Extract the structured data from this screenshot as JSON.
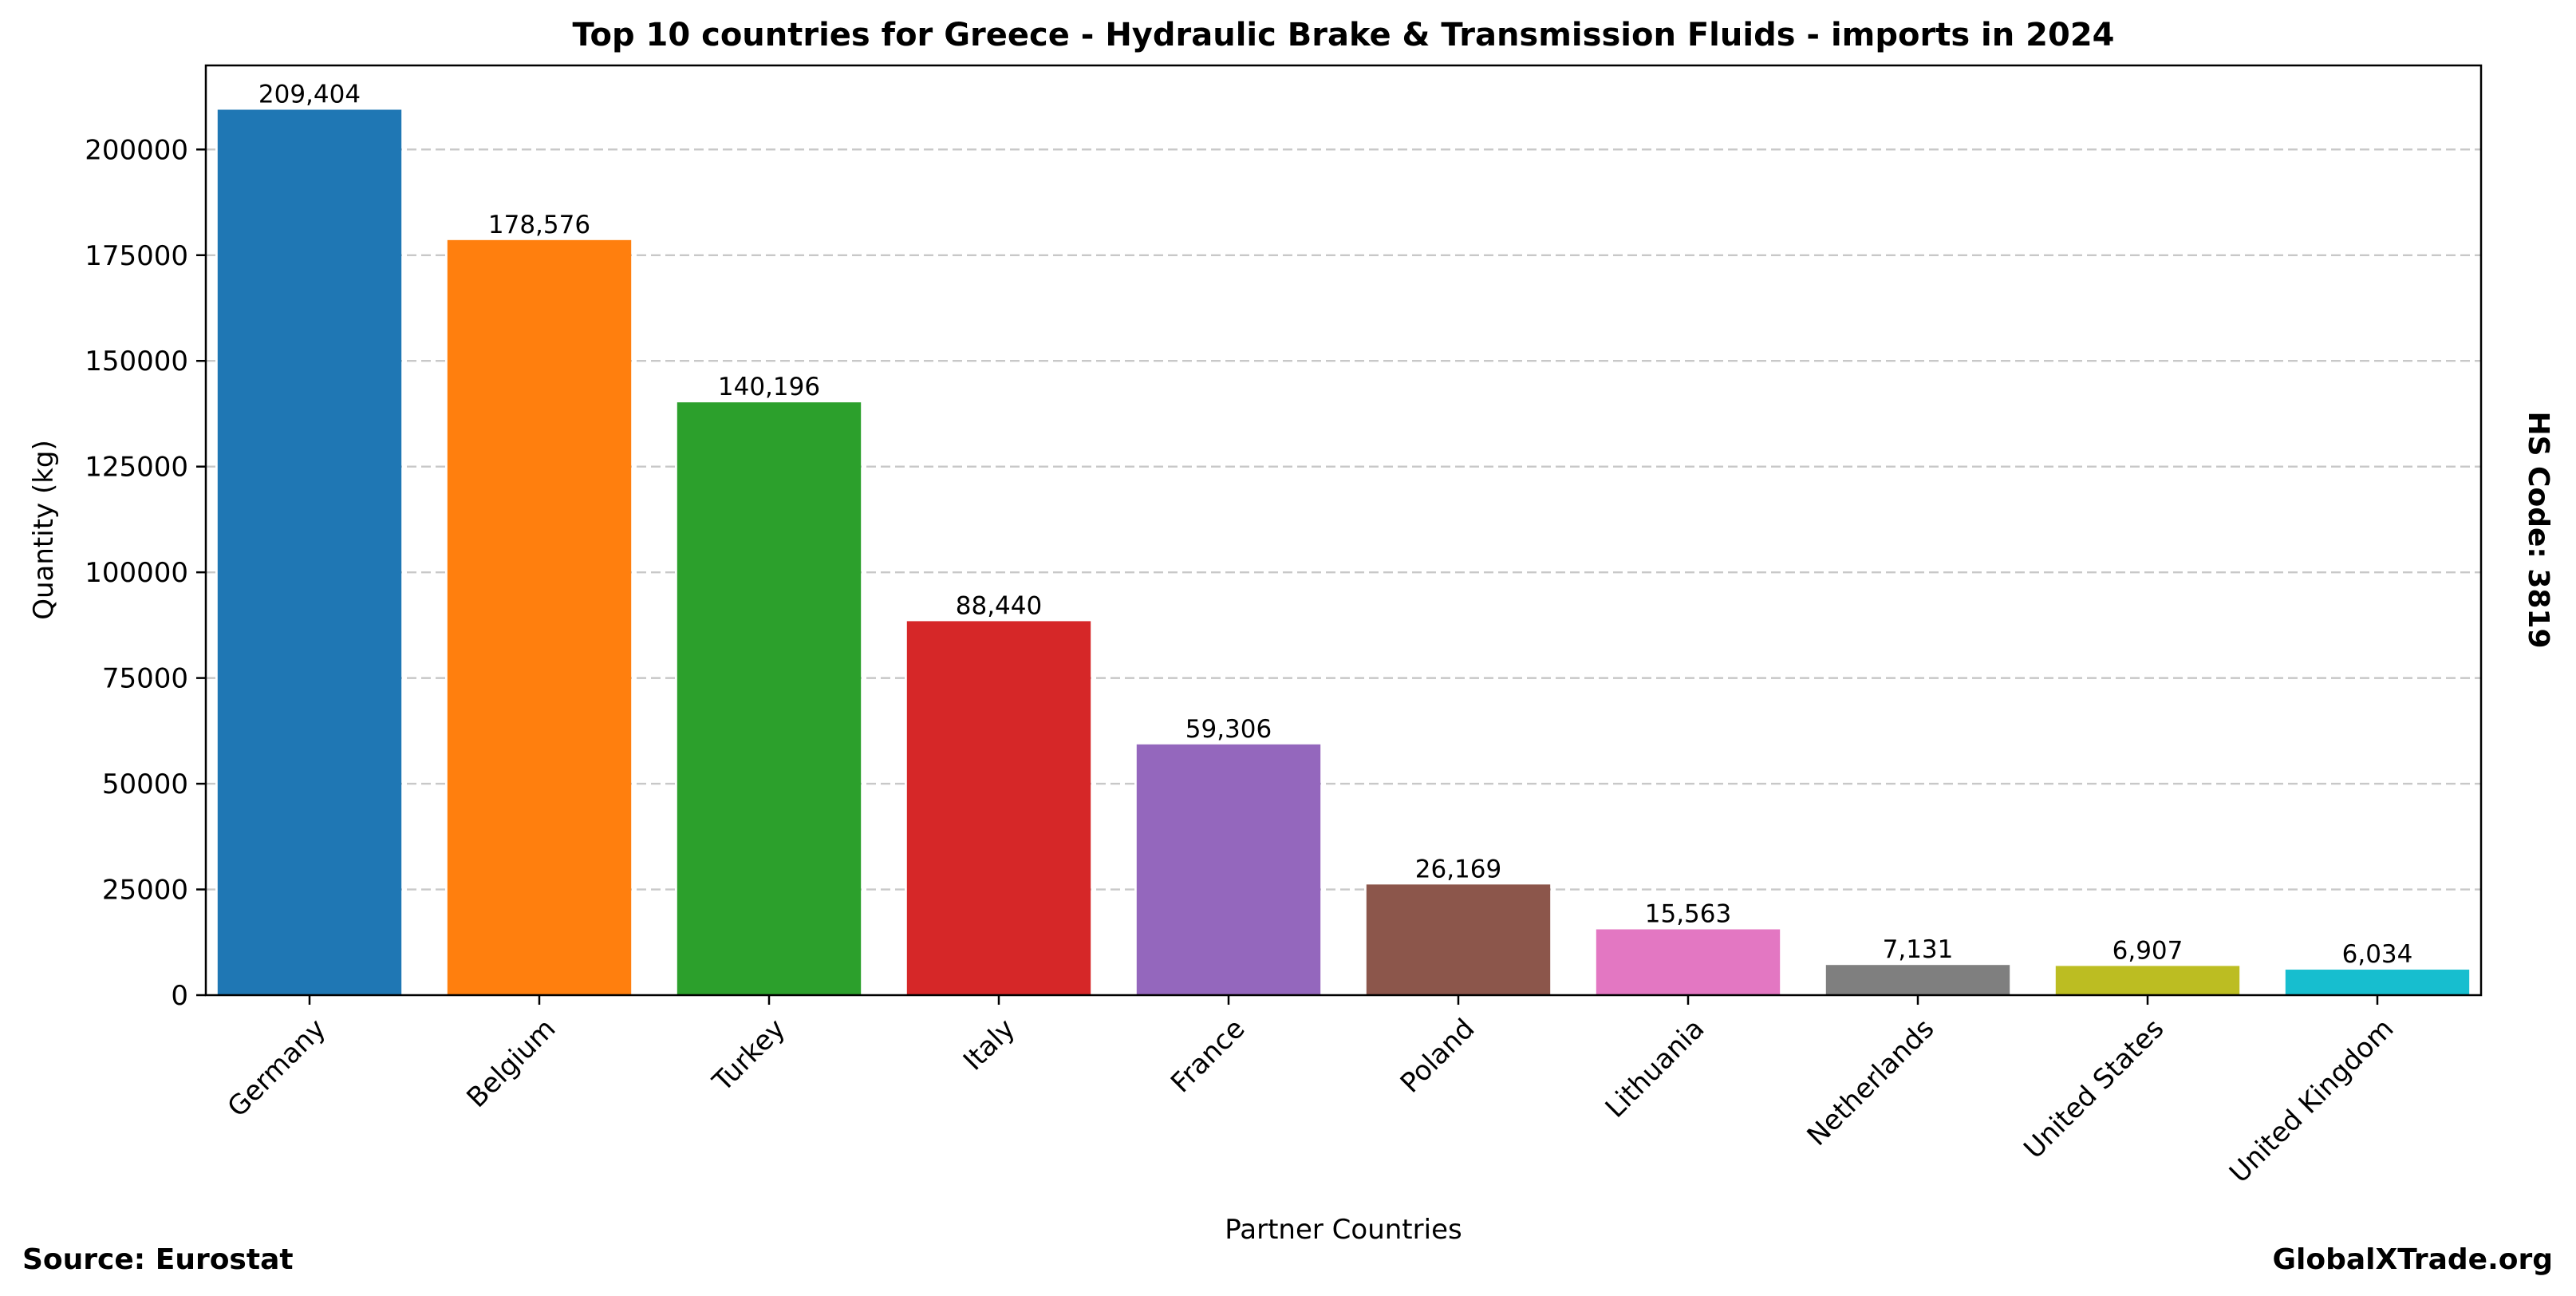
{
  "chart_data": {
    "type": "bar",
    "title": "Top 10 countries for Greece - Hydraulic Brake & Transmission Fluids - imports in 2024",
    "xlabel": "Partner Countries",
    "ylabel": "Quantity (kg)",
    "categories": [
      "Germany",
      "Belgium",
      "Turkey",
      "Italy",
      "France",
      "Poland",
      "Lithuania",
      "Netherlands",
      "United States",
      "United Kingdom"
    ],
    "values": [
      209404,
      178576,
      140196,
      88440,
      59306,
      26169,
      15563,
      7131,
      6907,
      6034
    ],
    "value_labels": [
      "209,404",
      "178,576",
      "140,196",
      "88,440",
      "59,306",
      "26,169",
      "15,563",
      "7,131",
      "6,907",
      "6,034"
    ],
    "colors": [
      "#1f77b4",
      "#ff7f0e",
      "#2ca02c",
      "#d62728",
      "#9467bd",
      "#8c564b",
      "#e377c2",
      "#7f7f7f",
      "#bcbd22",
      "#17becf"
    ],
    "yticks": [
      0,
      25000,
      50000,
      75000,
      100000,
      125000,
      150000,
      175000,
      200000
    ],
    "ylim": [
      0,
      219874
    ],
    "grid": "y-dashed",
    "legend": "none"
  },
  "annotations": {
    "side_label": "HS Code: 3819",
    "source": "Source: Eurostat",
    "brand": "GlobalXTrade.org"
  }
}
